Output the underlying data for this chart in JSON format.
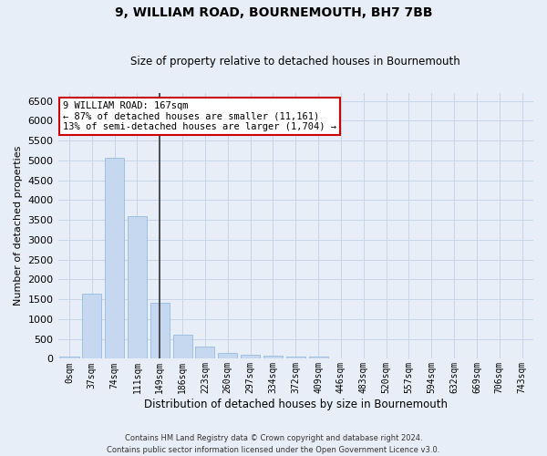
{
  "title": "9, WILLIAM ROAD, BOURNEMOUTH, BH7 7BB",
  "subtitle": "Size of property relative to detached houses in Bournemouth",
  "xlabel": "Distribution of detached houses by size in Bournemouth",
  "ylabel": "Number of detached properties",
  "footer_line1": "Contains HM Land Registry data © Crown copyright and database right 2024.",
  "footer_line2": "Contains public sector information licensed under the Open Government Licence v3.0.",
  "bar_labels": [
    "0sqm",
    "37sqm",
    "74sqm",
    "111sqm",
    "149sqm",
    "186sqm",
    "223sqm",
    "260sqm",
    "297sqm",
    "334sqm",
    "372sqm",
    "409sqm",
    "446sqm",
    "483sqm",
    "520sqm",
    "557sqm",
    "594sqm",
    "632sqm",
    "669sqm",
    "706sqm",
    "743sqm"
  ],
  "bar_values": [
    65,
    1650,
    5070,
    3600,
    1420,
    615,
    300,
    145,
    105,
    75,
    60,
    55,
    0,
    0,
    0,
    0,
    0,
    0,
    0,
    0,
    0
  ],
  "bar_color": "#c5d8f0",
  "bar_edge_color": "#8ab4d8",
  "highlight_bar_index": 4,
  "highlight_line_color": "#333333",
  "ylim": [
    0,
    6700
  ],
  "yticks": [
    0,
    500,
    1000,
    1500,
    2000,
    2500,
    3000,
    3500,
    4000,
    4500,
    5000,
    5500,
    6000,
    6500
  ],
  "annotation_text_line1": "9 WILLIAM ROAD: 167sqm",
  "annotation_text_line2": "← 87% of detached houses are smaller (11,161)",
  "annotation_text_line3": "13% of semi-detached houses are larger (1,704) →",
  "annotation_box_color": "#ffffff",
  "annotation_box_edge_color": "#cc0000",
  "grid_color": "#c8d4e8",
  "background_color": "#e8eef8",
  "plot_area_color": "#e8eef8"
}
